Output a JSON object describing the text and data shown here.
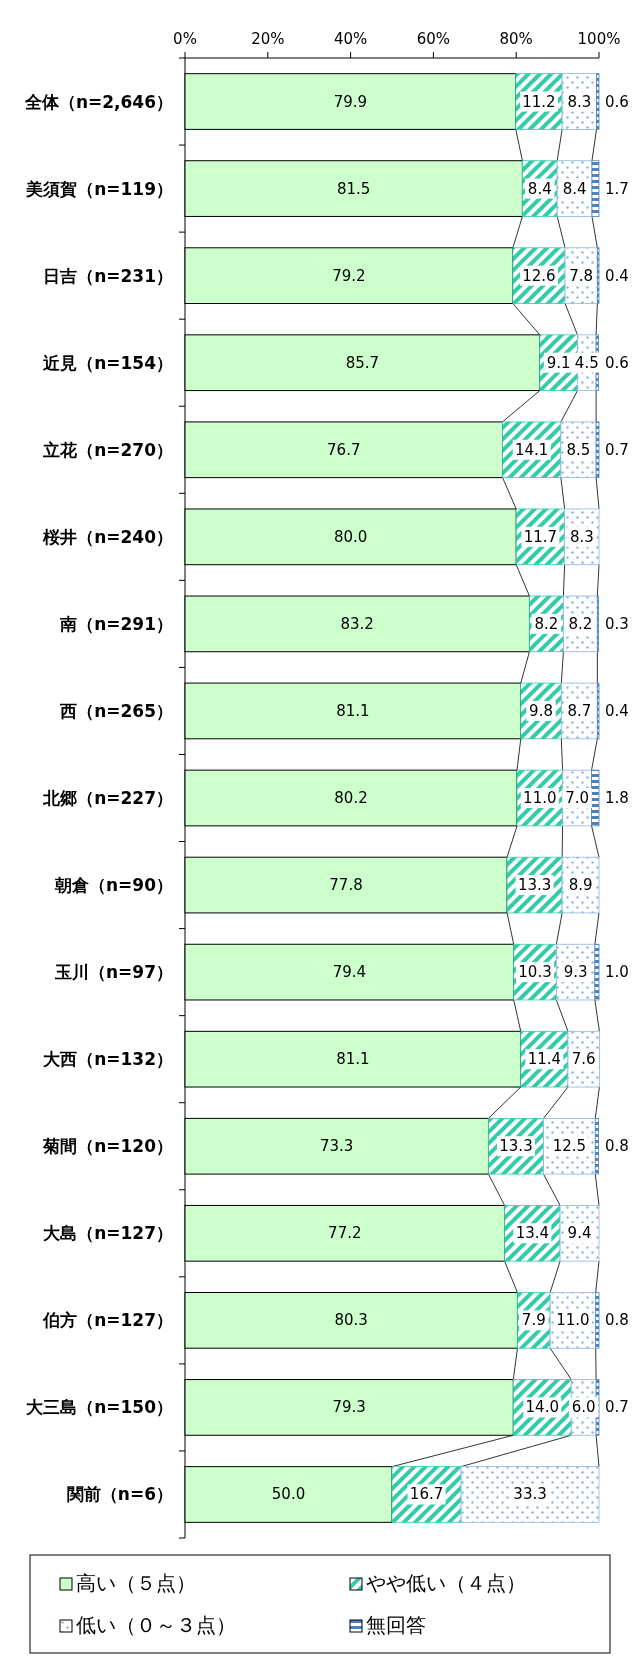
{
  "chart_data": {
    "type": "bar",
    "orientation": "horizontal",
    "stacked": true,
    "legend": "bottom",
    "categories": [
      "全体（n=2,646）",
      "美須賀（n=119）",
      "日吉（n=231）",
      "近見（n=154）",
      "立花（n=270）",
      "桜井（n=240）",
      "南（n=291）",
      "西（n=265）",
      "北郷（n=227）",
      "朝倉（n=90）",
      "玉川（n=97）",
      "大西（n=132）",
      "菊間（n=120）",
      "大島（n=127）",
      "伯方（n=127）",
      "大三島（n=150）",
      "関前（n=6）"
    ],
    "xlim": [
      0,
      100
    ],
    "xticks": [
      {
        "value": 0,
        "label": "0%"
      },
      {
        "value": 20,
        "label": "20%"
      },
      {
        "value": 40,
        "label": "40%"
      },
      {
        "value": 60,
        "label": "60%"
      },
      {
        "value": 80,
        "label": "80%"
      },
      {
        "value": 100,
        "label": "100%"
      }
    ],
    "series": [
      {
        "name": "高い（５点）",
        "color": "#ccffcc",
        "values": [
          79.9,
          81.5,
          79.2,
          85.7,
          76.7,
          80.0,
          83.2,
          81.1,
          80.2,
          77.8,
          79.4,
          81.1,
          73.3,
          77.2,
          80.3,
          79.3,
          50.0
        ],
        "value_labels": [
          "79.9",
          "81.5",
          "79.2",
          "85.7",
          "76.7",
          "80.0",
          "83.2",
          "81.1",
          "80.2",
          "77.8",
          "79.4",
          "81.1",
          "73.3",
          "77.2",
          "80.3",
          "79.3",
          "50.0"
        ]
      },
      {
        "name": "やや低い（４点）",
        "color": "#33ccaa",
        "values": [
          11.2,
          8.4,
          12.6,
          9.1,
          14.1,
          11.7,
          8.2,
          9.8,
          11.0,
          13.3,
          10.3,
          11.4,
          13.3,
          13.4,
          7.9,
          14.0,
          16.7
        ],
        "value_labels": [
          "11.2",
          "8.4",
          "12.6",
          "9.1",
          "14.1",
          "11.7",
          "8.2",
          "9.8",
          "11.0",
          "13.3",
          "10.3",
          "11.4",
          "13.3",
          "13.4",
          "7.9",
          "14.0",
          "16.7"
        ]
      },
      {
        "name": "低い（０～３点）",
        "color": "#8db4e2",
        "values": [
          8.3,
          8.4,
          7.8,
          4.5,
          8.5,
          8.3,
          8.2,
          8.7,
          7.0,
          8.9,
          9.3,
          7.6,
          12.5,
          9.4,
          11.0,
          6.0,
          33.3
        ],
        "value_labels": [
          "8.3",
          "8.4",
          "7.8",
          "4.5",
          "8.5",
          "8.3",
          "8.2",
          "8.7",
          "7.0",
          "8.9",
          "9.3",
          "7.6",
          "12.5",
          "9.4",
          "11.0",
          "6.0",
          "33.3"
        ]
      },
      {
        "name": "無回答",
        "color": "#4f81bd",
        "values": [
          0.6,
          1.7,
          0.4,
          0.6,
          0.7,
          0,
          0.3,
          0.4,
          1.8,
          0,
          1.0,
          0,
          0.8,
          0,
          0.8,
          0.7,
          0
        ],
        "value_labels": [
          "0.6",
          "1.7",
          "0.4",
          "0.6",
          "0.7",
          null,
          "0.3",
          "0.4",
          "1.8",
          null,
          "1.0",
          null,
          "0.8",
          null,
          "0.8",
          "0.7",
          null
        ]
      }
    ]
  }
}
